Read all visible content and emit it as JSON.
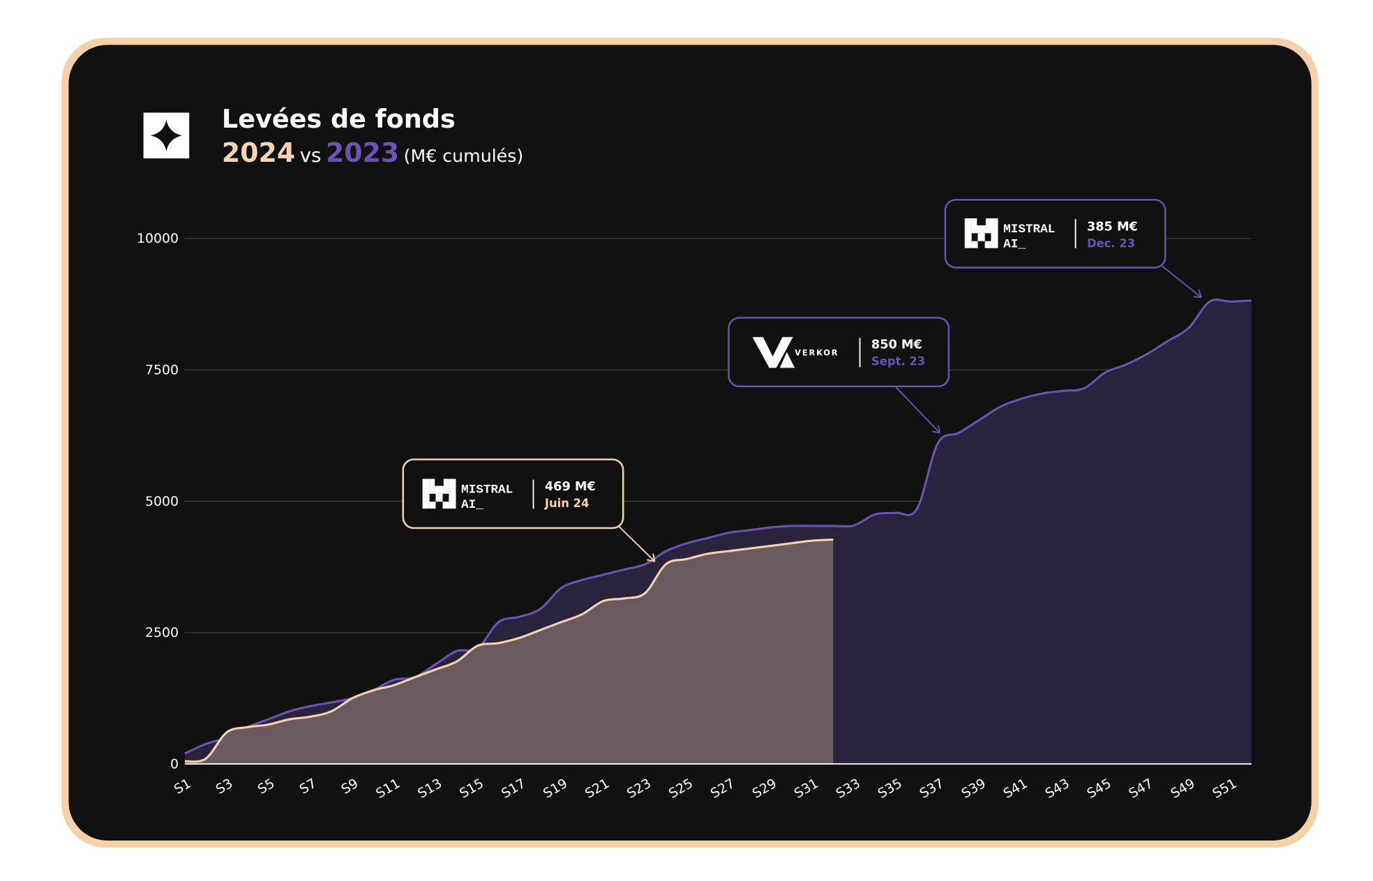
{
  "chart_data": {
    "type": "area",
    "title": "Levées de fonds",
    "subtitle": {
      "between": "vs",
      "unit": "(M€ cumulés)"
    },
    "categories": [
      "S1",
      null,
      "S3",
      null,
      "S5",
      null,
      "S7",
      null,
      "S9",
      null,
      "S11",
      null,
      "S13",
      null,
      "S15",
      null,
      "S17",
      null,
      "S19",
      null,
      "S21",
      null,
      "S23",
      null,
      "S25",
      null,
      "S27",
      null,
      "S29",
      null,
      "S31",
      null,
      "S33",
      null,
      "S35",
      null,
      "S37",
      null,
      "S39",
      null,
      "S41",
      null,
      "S43",
      null,
      "S45",
      null,
      "S47",
      null,
      "S49",
      null,
      "S51",
      null
    ],
    "series": [
      {
        "name": "2023",
        "color": "#6b52b3",
        "fill": "#29233d",
        "values": [
          200,
          380,
          500,
          700,
          850,
          1000,
          1100,
          1170,
          1250,
          1400,
          1600,
          1650,
          1900,
          2150,
          2200,
          2700,
          2800,
          2950,
          3350,
          3500,
          3600,
          3700,
          3800,
          4050,
          4200,
          4300,
          4400,
          4450,
          4500,
          4530,
          4530,
          4530,
          4540,
          4750,
          4780,
          4850,
          6100,
          6300,
          6550,
          6800,
          6950,
          7050,
          7100,
          7150,
          7450,
          7600,
          7800,
          8050,
          8300,
          8800,
          8800,
          8820
        ]
      },
      {
        "name": "2024",
        "color": "#f6d3b0",
        "fill": "#6a5a5d",
        "values": [
          50,
          100,
          600,
          700,
          750,
          850,
          900,
          1000,
          1250,
          1400,
          1500,
          1650,
          1800,
          1950,
          2250,
          2300,
          2400,
          2550,
          2700,
          2850,
          3100,
          3150,
          3250,
          3800,
          3900,
          4000,
          4050,
          4100,
          4150,
          4200,
          4250,
          4270,
          null,
          null,
          null,
          null,
          null,
          null,
          null,
          null,
          null,
          null,
          null,
          null,
          null,
          null,
          null,
          null,
          null,
          null,
          null,
          null
        ]
      }
    ],
    "ylim": [
      0,
      10000
    ],
    "yticks": [
      0,
      2500,
      5000,
      7500,
      10000
    ],
    "grid": true,
    "annotations": [
      {
        "logo": [
          "MISTRAL",
          "AI_"
        ],
        "amount": "469 M€",
        "date": "Juin 24",
        "color": "#f6d3b0"
      },
      {
        "logo": [
          "VERKOR"
        ],
        "amount": "850 M€",
        "date": "Sept. 23",
        "color": "#6b52b3"
      },
      {
        "logo": [
          "MISTRAL",
          "AI_"
        ],
        "amount": "385 M€",
        "date": "Dec. 23",
        "color": "#6b52b3"
      }
    ]
  }
}
